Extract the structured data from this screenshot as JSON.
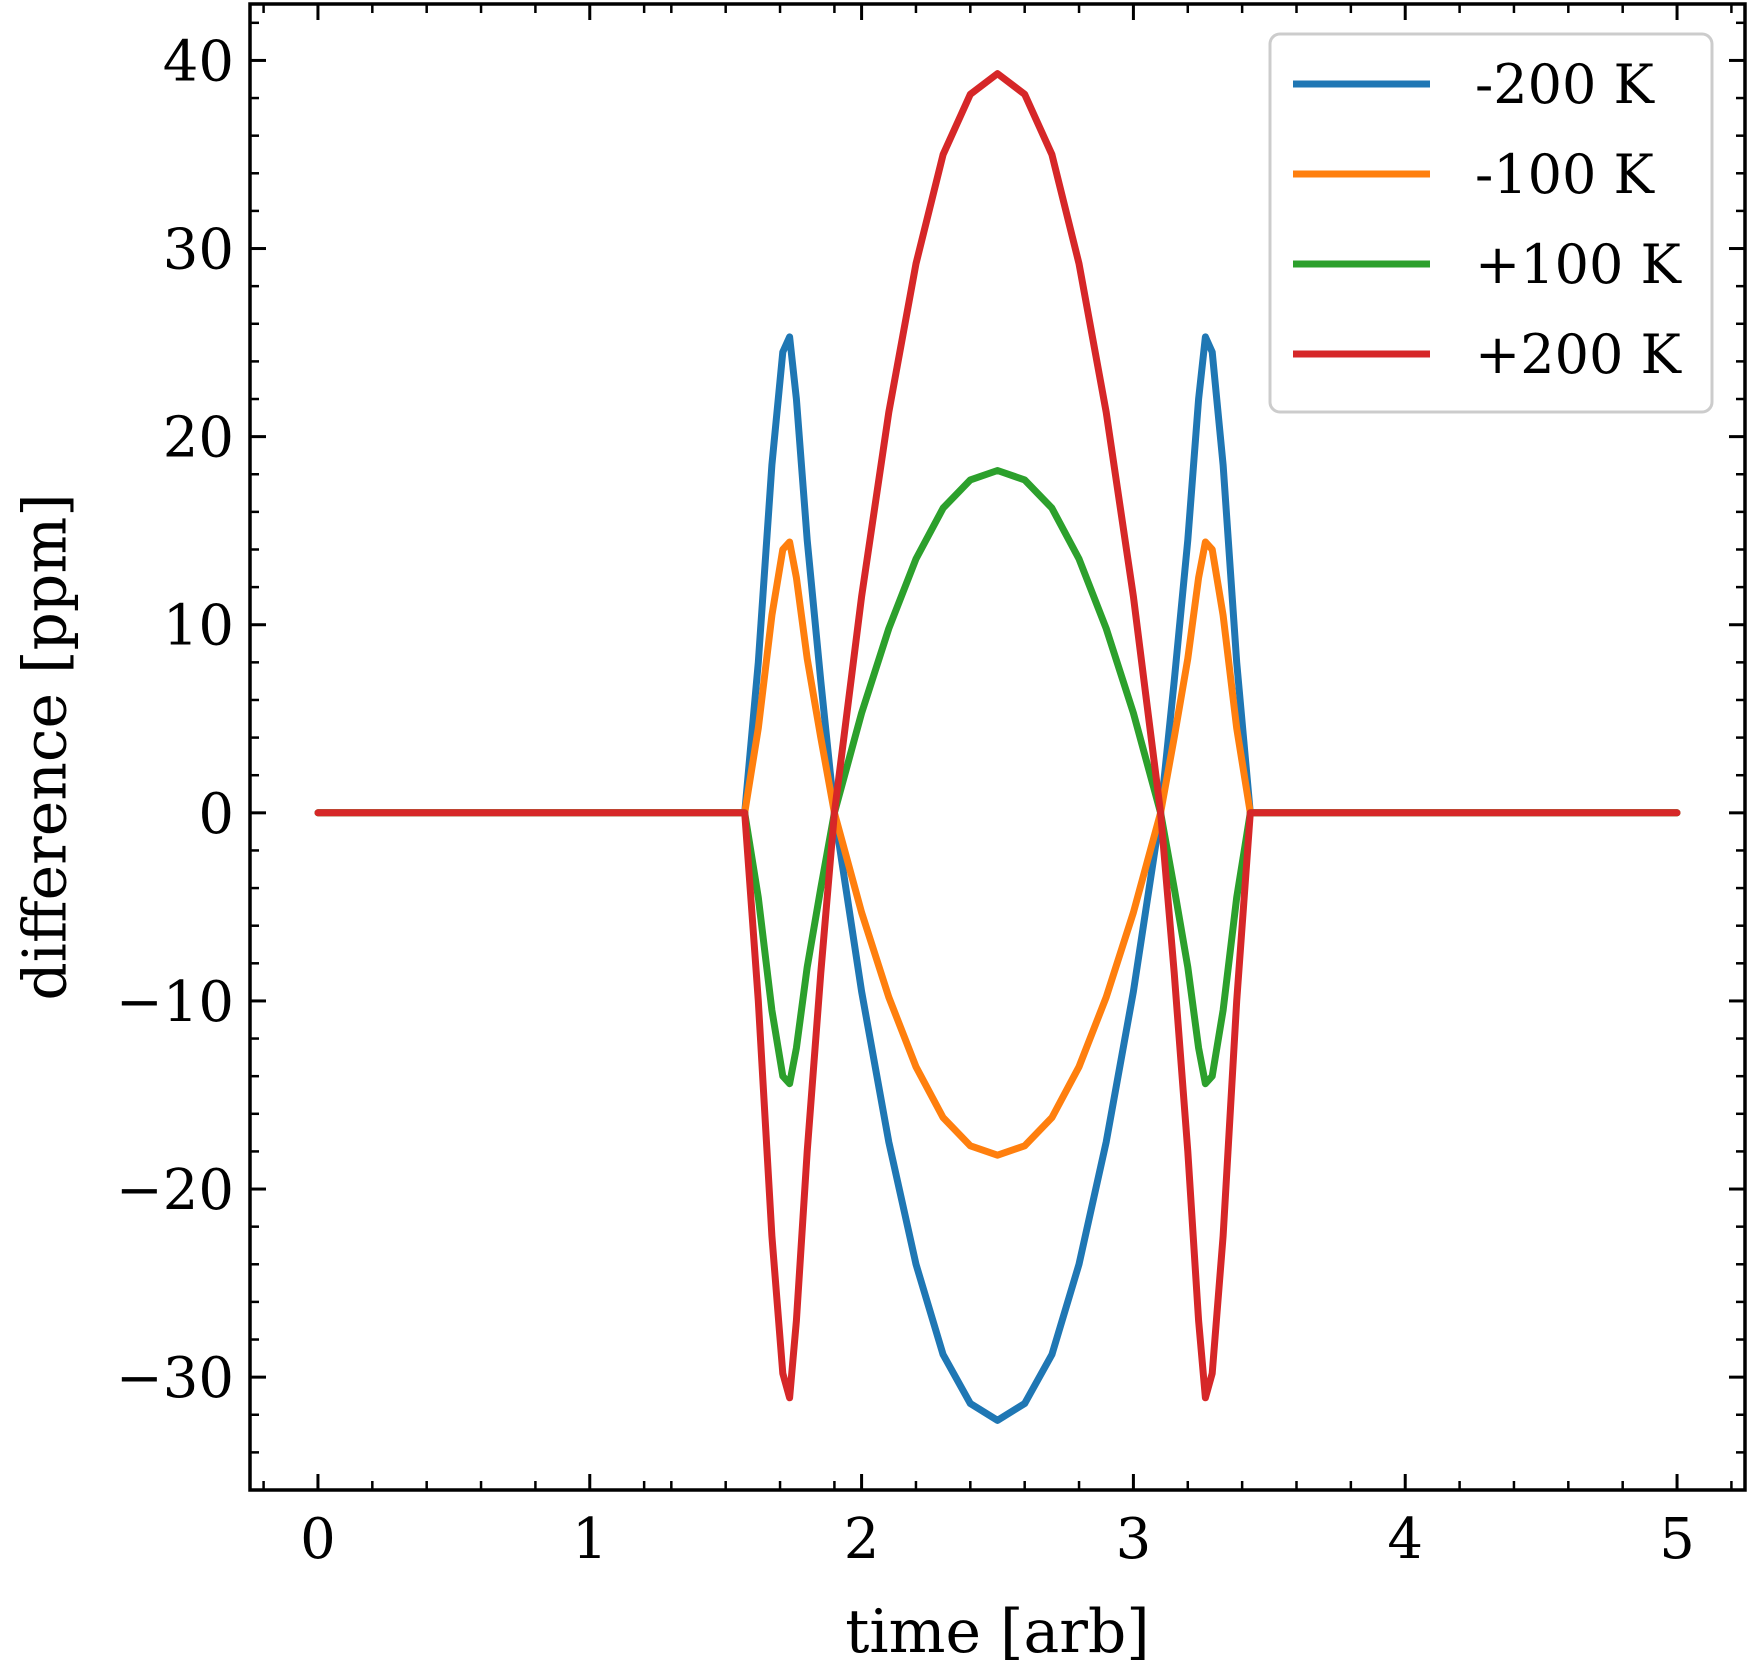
{
  "chart_data": {
    "type": "line",
    "title": "",
    "xlabel": "time [arb]",
    "ylabel": "difference [ppm]",
    "xlim": [
      -0.25,
      5.25
    ],
    "ylim": [
      -36,
      43
    ],
    "xticks": [
      0,
      1,
      2,
      3,
      4,
      5
    ],
    "xtick_labels": [
      "0",
      "1",
      "2",
      "3",
      "4",
      "5"
    ],
    "yticks": [
      -30,
      -20,
      -10,
      0,
      10,
      20,
      30,
      40
    ],
    "ytick_labels": [
      "−30",
      "−20",
      "−10",
      "0",
      "10",
      "20",
      "30",
      "40"
    ],
    "grid": false,
    "legend_position": "top-right",
    "series": [
      {
        "name": "-200 K",
        "color": "#1f77b4",
        "points": [
          [
            0,
            0
          ],
          [
            1.5,
            0
          ],
          [
            1.57,
            0
          ],
          [
            1.62,
            8
          ],
          [
            1.67,
            18.5
          ],
          [
            1.71,
            24.5
          ],
          [
            1.735,
            25.3
          ],
          [
            1.76,
            22
          ],
          [
            1.8,
            14.5
          ],
          [
            1.85,
            7
          ],
          [
            1.9,
            0
          ],
          [
            2.0,
            -9.5
          ],
          [
            2.1,
            -17.5
          ],
          [
            2.2,
            -24
          ],
          [
            2.3,
            -28.8
          ],
          [
            2.4,
            -31.4
          ],
          [
            2.5,
            -32.3
          ],
          [
            2.6,
            -31.4
          ],
          [
            2.7,
            -28.8
          ],
          [
            2.8,
            -24
          ],
          [
            2.9,
            -17.5
          ],
          [
            3.0,
            -9.5
          ],
          [
            3.1,
            0
          ],
          [
            3.15,
            7
          ],
          [
            3.2,
            14.5
          ],
          [
            3.24,
            22
          ],
          [
            3.265,
            25.3
          ],
          [
            3.29,
            24.5
          ],
          [
            3.33,
            18.5
          ],
          [
            3.38,
            8
          ],
          [
            3.43,
            0
          ],
          [
            3.5,
            0
          ],
          [
            5,
            0
          ]
        ]
      },
      {
        "name": "-100 K",
        "color": "#ff7f0e",
        "points": [
          [
            0,
            0
          ],
          [
            1.5,
            0
          ],
          [
            1.57,
            0
          ],
          [
            1.62,
            4.5
          ],
          [
            1.67,
            10.5
          ],
          [
            1.71,
            14
          ],
          [
            1.735,
            14.4
          ],
          [
            1.76,
            12.5
          ],
          [
            1.8,
            8.2
          ],
          [
            1.85,
            4
          ],
          [
            1.9,
            0
          ],
          [
            2.0,
            -5.3
          ],
          [
            2.1,
            -9.8
          ],
          [
            2.2,
            -13.5
          ],
          [
            2.3,
            -16.2
          ],
          [
            2.4,
            -17.7
          ],
          [
            2.5,
            -18.2
          ],
          [
            2.6,
            -17.7
          ],
          [
            2.7,
            -16.2
          ],
          [
            2.8,
            -13.5
          ],
          [
            2.9,
            -9.8
          ],
          [
            3.0,
            -5.3
          ],
          [
            3.1,
            0
          ],
          [
            3.15,
            4
          ],
          [
            3.2,
            8.2
          ],
          [
            3.24,
            12.5
          ],
          [
            3.265,
            14.4
          ],
          [
            3.29,
            14
          ],
          [
            3.33,
            10.5
          ],
          [
            3.38,
            4.5
          ],
          [
            3.43,
            0
          ],
          [
            3.5,
            0
          ],
          [
            5,
            0
          ]
        ]
      },
      {
        "name": "+100 K",
        "color": "#2ca02c",
        "points": [
          [
            0,
            0
          ],
          [
            1.5,
            0
          ],
          [
            1.57,
            0
          ],
          [
            1.62,
            -4.5
          ],
          [
            1.67,
            -10.5
          ],
          [
            1.71,
            -14
          ],
          [
            1.735,
            -14.4
          ],
          [
            1.76,
            -12.5
          ],
          [
            1.8,
            -8.2
          ],
          [
            1.85,
            -4
          ],
          [
            1.9,
            0
          ],
          [
            2.0,
            5.3
          ],
          [
            2.1,
            9.8
          ],
          [
            2.2,
            13.5
          ],
          [
            2.3,
            16.2
          ],
          [
            2.4,
            17.7
          ],
          [
            2.5,
            18.2
          ],
          [
            2.6,
            17.7
          ],
          [
            2.7,
            16.2
          ],
          [
            2.8,
            13.5
          ],
          [
            2.9,
            9.8
          ],
          [
            3.0,
            5.3
          ],
          [
            3.1,
            0
          ],
          [
            3.15,
            -4
          ],
          [
            3.2,
            -8.2
          ],
          [
            3.24,
            -12.5
          ],
          [
            3.265,
            -14.4
          ],
          [
            3.29,
            -14
          ],
          [
            3.33,
            -10.5
          ],
          [
            3.38,
            -4.5
          ],
          [
            3.43,
            0
          ],
          [
            3.5,
            0
          ],
          [
            5,
            0
          ]
        ]
      },
      {
        "name": "+200 K",
        "color": "#d62728",
        "points": [
          [
            0,
            0
          ],
          [
            1.5,
            0
          ],
          [
            1.57,
            0
          ],
          [
            1.62,
            -10
          ],
          [
            1.67,
            -22.5
          ],
          [
            1.71,
            -29.8
          ],
          [
            1.735,
            -31.1
          ],
          [
            1.76,
            -27
          ],
          [
            1.8,
            -18
          ],
          [
            1.85,
            -8.5
          ],
          [
            1.9,
            0
          ],
          [
            2.0,
            11.5
          ],
          [
            2.1,
            21.3
          ],
          [
            2.2,
            29.2
          ],
          [
            2.3,
            35
          ],
          [
            2.4,
            38.2
          ],
          [
            2.5,
            39.3
          ],
          [
            2.6,
            38.2
          ],
          [
            2.7,
            35
          ],
          [
            2.8,
            29.2
          ],
          [
            2.9,
            21.3
          ],
          [
            3.0,
            11.5
          ],
          [
            3.1,
            0
          ],
          [
            3.15,
            -8.5
          ],
          [
            3.2,
            -18
          ],
          [
            3.24,
            -27
          ],
          [
            3.265,
            -31.1
          ],
          [
            3.29,
            -29.8
          ],
          [
            3.33,
            -22.5
          ],
          [
            3.38,
            -10
          ],
          [
            3.43,
            0
          ],
          [
            3.5,
            0
          ],
          [
            5,
            0
          ]
        ]
      }
    ]
  }
}
